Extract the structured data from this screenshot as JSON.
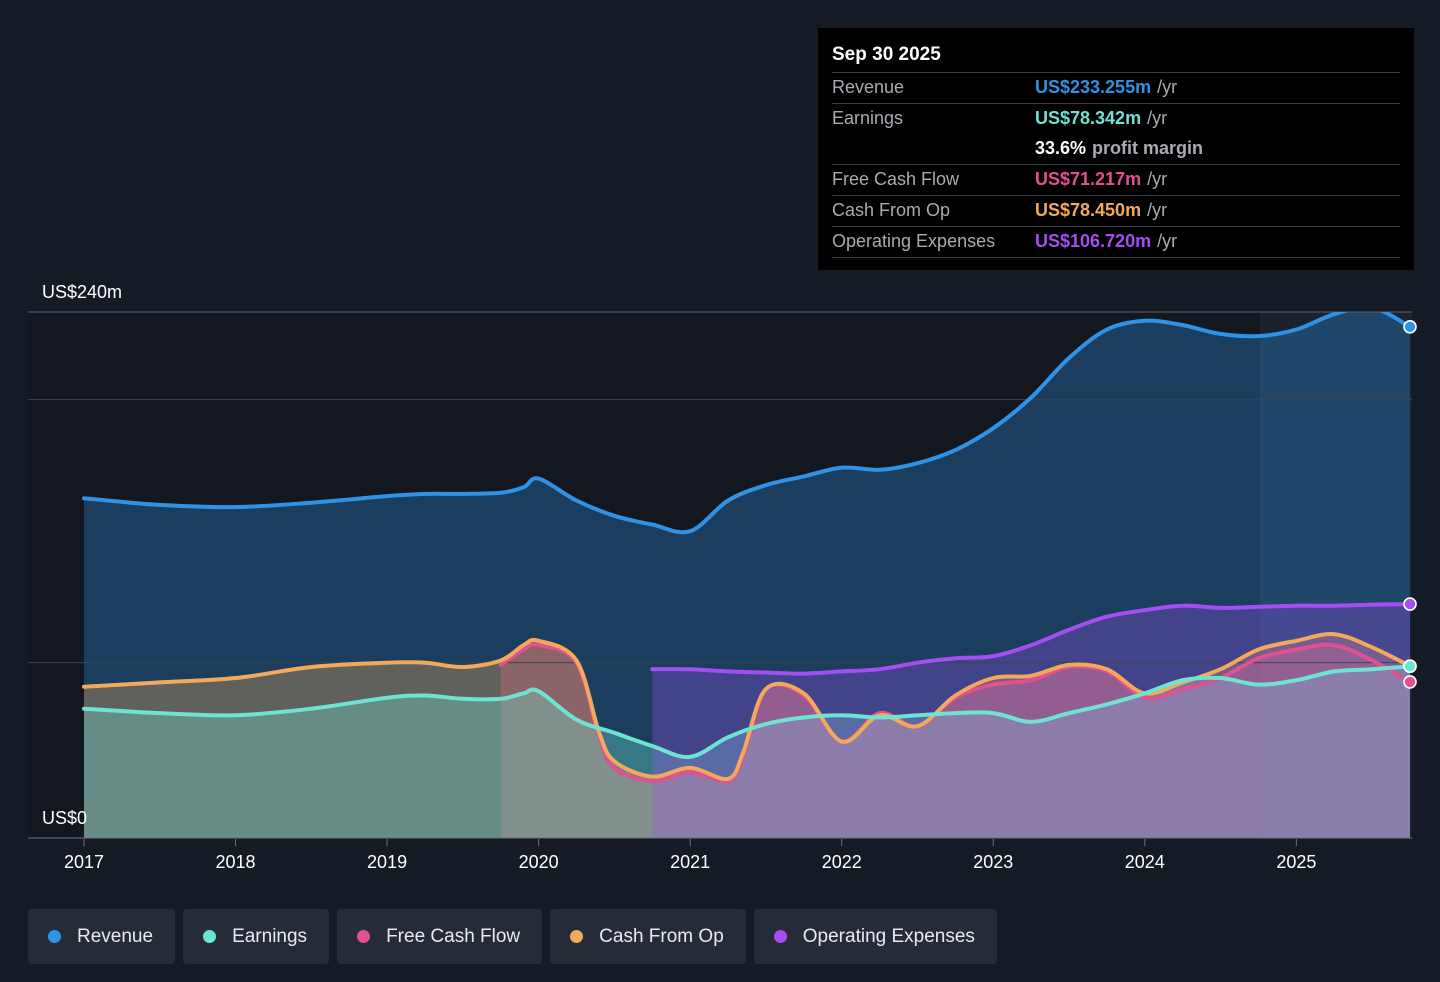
{
  "tooltip": {
    "date": "Sep 30 2025",
    "rows": [
      {
        "label": "Revenue",
        "value": "US$233.255m",
        "unit": "/yr",
        "color": "#2e93e6"
      },
      {
        "label": "Earnings",
        "value": "US$78.342m",
        "unit": "/yr",
        "color": "#6fe3d2"
      },
      {
        "label": "",
        "value": "33.6%",
        "unit": "profit margin",
        "color": "#ffffff"
      },
      {
        "label": "Free Cash Flow",
        "value": "US$71.217m",
        "unit": "/yr",
        "color": "#e0528f"
      },
      {
        "label": "Cash From Op",
        "value": "US$78.450m",
        "unit": "/yr",
        "color": "#f2a95b"
      },
      {
        "label": "Operating Expenses",
        "value": "US$106.720m",
        "unit": "/yr",
        "color": "#a34ef0"
      }
    ]
  },
  "chart_data": {
    "type": "area",
    "y_axis": {
      "top_label": "US$240m",
      "bottom_label": "US$0",
      "ylim": [
        0,
        240
      ],
      "gridlines": [
        0,
        80,
        200,
        240
      ]
    },
    "x_ticks": [
      "2017",
      "2018",
      "2019",
      "2020",
      "2021",
      "2022",
      "2023",
      "2024",
      "2025"
    ],
    "xlim": [
      2017,
      2025.75
    ],
    "series": [
      {
        "name": "Revenue",
        "color": "#2e93e6",
        "x": [
          2017.0,
          2017.5,
          2018.0,
          2018.5,
          2019.0,
          2019.25,
          2019.5,
          2019.75,
          2019.9,
          2020.0,
          2020.25,
          2020.5,
          2020.75,
          2021.0,
          2021.25,
          2021.5,
          2021.75,
          2022.0,
          2022.25,
          2022.5,
          2022.75,
          2023.0,
          2023.25,
          2023.5,
          2023.75,
          2024.0,
          2024.25,
          2024.5,
          2024.75,
          2025.0,
          2025.25,
          2025.5,
          2025.75
        ],
        "y": [
          155,
          152,
          151,
          153,
          156,
          157,
          157,
          157.5,
          160,
          164,
          154,
          147,
          143,
          140,
          154,
          161,
          165,
          169,
          168,
          171,
          177,
          187,
          201,
          219,
          232,
          236,
          234,
          230,
          229,
          232,
          239,
          242,
          233.255
        ]
      },
      {
        "name": "Earnings",
        "color": "#6fe3d2",
        "x": [
          2017.0,
          2017.5,
          2018.0,
          2018.5,
          2019.0,
          2019.25,
          2019.5,
          2019.75,
          2019.9,
          2020.0,
          2020.25,
          2020.5,
          2020.75,
          2021.0,
          2021.25,
          2021.5,
          2021.75,
          2022.0,
          2022.25,
          2022.5,
          2022.75,
          2023.0,
          2023.25,
          2023.5,
          2023.75,
          2024.0,
          2024.25,
          2024.5,
          2024.75,
          2025.0,
          2025.25,
          2025.5,
          2025.75
        ],
        "y": [
          59,
          57,
          56,
          59,
          64,
          65,
          63.5,
          63.5,
          66,
          67,
          54,
          48,
          42,
          37,
          46,
          52,
          55,
          56,
          55,
          56,
          57,
          57,
          53,
          57,
          61,
          66,
          72,
          73,
          70,
          72,
          76,
          77,
          78.342
        ]
      },
      {
        "name": "Free Cash Flow",
        "color": "#e0528f",
        "x": [
          2019.75,
          2019.9,
          2020.0,
          2020.25,
          2020.4,
          2020.5,
          2020.75,
          2021.0,
          2021.25,
          2021.35,
          2021.5,
          2021.75,
          2022.0,
          2022.25,
          2022.5,
          2022.75,
          2023.0,
          2023.25,
          2023.5,
          2023.75,
          2024.0,
          2024.25,
          2024.5,
          2024.75,
          2025.0,
          2025.25,
          2025.5,
          2025.75
        ],
        "y": [
          79,
          86,
          88,
          80,
          46,
          32,
          26,
          30,
          26,
          37,
          68,
          65,
          44,
          57,
          51,
          64,
          70,
          72,
          78,
          76,
          64,
          68,
          73,
          82,
          86,
          88,
          81,
          71.217
        ]
      },
      {
        "name": "Cash From Op",
        "color": "#f2a95b",
        "x": [
          2017.0,
          2017.5,
          2018.0,
          2018.5,
          2019.0,
          2019.25,
          2019.5,
          2019.75,
          2019.9,
          2020.0,
          2020.25,
          2020.4,
          2020.5,
          2020.75,
          2021.0,
          2021.25,
          2021.35,
          2021.5,
          2021.75,
          2022.0,
          2022.25,
          2022.5,
          2022.75,
          2023.0,
          2023.25,
          2023.5,
          2023.75,
          2024.0,
          2024.25,
          2024.5,
          2024.75,
          2025.0,
          2025.25,
          2025.5,
          2025.75
        ],
        "y": [
          69,
          71,
          73,
          78,
          80,
          80,
          78,
          81,
          88,
          90,
          81,
          48,
          35,
          28,
          32,
          27,
          39,
          68,
          66,
          44,
          56,
          51,
          65,
          73,
          74,
          79,
          77,
          66,
          71,
          77,
          86,
          90,
          93,
          87,
          78.45
        ]
      },
      {
        "name": "Operating Expenses",
        "color": "#a34ef0",
        "x": [
          2020.75,
          2021.0,
          2021.25,
          2021.5,
          2021.75,
          2022.0,
          2022.25,
          2022.5,
          2022.75,
          2023.0,
          2023.25,
          2023.5,
          2023.75,
          2024.0,
          2024.25,
          2024.5,
          2024.75,
          2025.0,
          2025.25,
          2025.5,
          2025.75
        ],
        "y": [
          77,
          77,
          76,
          75.5,
          75,
          76,
          77,
          80,
          82,
          83,
          88,
          95,
          101,
          104,
          106,
          105,
          105.5,
          106,
          106,
          106.5,
          106.72
        ]
      }
    ]
  },
  "legend": [
    {
      "label": "Revenue",
      "color": "#2e93e6"
    },
    {
      "label": "Earnings",
      "color": "#6fe3d2"
    },
    {
      "label": "Free Cash Flow",
      "color": "#e0528f"
    },
    {
      "label": "Cash From Op",
      "color": "#f2a95b"
    },
    {
      "label": "Operating Expenses",
      "color": "#a34ef0"
    }
  ]
}
